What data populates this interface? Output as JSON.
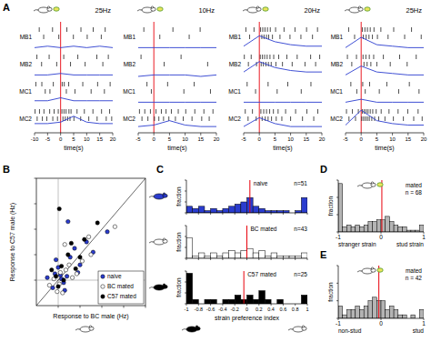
{
  "chart_data": [
    {
      "type": "raster",
      "panel_label": "A",
      "title": "25Hz",
      "xlabel": "time(s)",
      "xlim": [
        -10,
        20
      ],
      "xticks": [
        -10,
        -5,
        0,
        5,
        10,
        15,
        20
      ],
      "stimulus_onset": 0,
      "rate_x": [
        -10,
        -5,
        0,
        5,
        10,
        15,
        20
      ],
      "rate_ylim": [
        0,
        16
      ],
      "color": "#2a3ccf",
      "rows": [
        {
          "name": "MB1",
          "trials": [
            [
              -8.2,
              -3.1,
              2.4,
              7.8,
              12.5,
              17.1
            ],
            [
              -6.5,
              -0.7,
              4.9,
              10.2,
              15.6
            ]
          ],
          "rate": [
            1,
            2,
            1,
            2,
            1,
            2,
            1
          ]
        },
        {
          "name": "MB2",
          "trials": [
            [
              -9.1,
              -4.4,
              1.2,
              6.6,
              13.9,
              18.3
            ],
            [
              -7.3,
              -1.5,
              3.8,
              9.4,
              16.2
            ]
          ],
          "rate": [
            1,
            1,
            2,
            1,
            1,
            1,
            1
          ]
        },
        {
          "name": "MC1",
          "trials": [
            [
              -9.5,
              -7.2,
              -2.8,
              0.6,
              1.4,
              3.1,
              8.5,
              14.2,
              19.0
            ],
            [
              -5.9,
              -4.1,
              2.2,
              5.5,
              11.7,
              16.8
            ]
          ],
          "rate": [
            2,
            2,
            4,
            2,
            2,
            2,
            2
          ]
        },
        {
          "name": "MC2",
          "trials": [
            [
              -9.8,
              -8.1,
              -6.4,
              -4.2,
              -2.5,
              -0.9,
              0.5,
              1.3,
              2.1,
              3.2,
              4.0,
              6.3,
              9.1,
              12.4,
              15.7,
              18.8
            ],
            [
              -9.0,
              -7.0,
              -5.3,
              -3.0,
              -1.2,
              0.9,
              1.8,
              2.7,
              3.6,
              5.1,
              7.7,
              10.8,
              14.0,
              17.5,
              19.6
            ]
          ],
          "rate": [
            5,
            5,
            6,
            10,
            6,
            5,
            5
          ]
        }
      ]
    },
    {
      "type": "raster",
      "title": "10Hz",
      "xlabel": "time(s)",
      "xlim": [
        -5,
        20
      ],
      "xticks": [
        -5,
        0,
        5,
        10,
        15,
        20
      ],
      "stimulus_onset": 0,
      "rate_x": [
        -5,
        0,
        5,
        10,
        15,
        20
      ],
      "rate_ylim": [
        0,
        16
      ],
      "color": "#2a3ccf",
      "rows": [
        {
          "name": "MB1",
          "trials": [
            [
              -3.2,
              6.1,
              14.8
            ],
            [
              1.9,
              11.3
            ]
          ],
          "rate": [
            1,
            1,
            1,
            1,
            1,
            1
          ]
        },
        {
          "name": "MB2",
          "trials": [
            [
              -4.1,
              8.7
            ],
            [
              3.3,
              17.2
            ]
          ],
          "rate": [
            0,
            1,
            1,
            1,
            0,
            1
          ]
        },
        {
          "name": "MC1",
          "trials": [
            [
              -2.2,
              4.4,
              12.9
            ],
            [
              -0.8,
              9.6,
              18.1
            ]
          ],
          "rate": [
            1,
            1,
            1,
            1,
            1,
            1
          ]
        },
        {
          "name": "MC2",
          "trials": [
            [
              -4.6,
              -2.9,
              -1.1,
              0.7,
              2.4,
              3.9,
              5.6,
              7.8,
              10.2,
              13.1,
              16.0,
              18.9
            ],
            [
              -3.8,
              -1.9,
              0.2,
              1.6,
              3.1,
              4.8,
              6.9,
              9.4,
              12.2,
              15.3,
              17.7
            ]
          ],
          "rate": [
            3,
            4,
            7,
            4,
            3,
            3
          ]
        }
      ]
    },
    {
      "type": "raster",
      "title": "20Hz",
      "xlabel": "time(s)",
      "xlim": [
        -5,
        20
      ],
      "xticks": [
        -5,
        0,
        5,
        10,
        15,
        20
      ],
      "stimulus_onset": 0,
      "rate_x": [
        -5,
        0,
        5,
        10,
        15,
        20
      ],
      "rate_ylim": [
        0,
        16
      ],
      "color": "#2a3ccf",
      "rows": [
        {
          "name": "MB1",
          "trials": [
            [
              -4.3,
              -1.7,
              0.4,
              1.1,
              1.8,
              2.6,
              3.5,
              5.2,
              7.9,
              11.4,
              15.1,
              18.6
            ],
            [
              -3.1,
              0.8,
              1.5,
              2.3,
              3.0,
              4.2,
              6.6,
              9.8,
              13.3,
              17.0
            ]
          ],
          "rate": [
            2,
            9,
            5,
            3,
            2,
            2
          ]
        },
        {
          "name": "MB2",
          "trials": [
            [
              -4.8,
              -2.6,
              0.3,
              1.0,
              1.7,
              2.5,
              3.4,
              4.6,
              6.2,
              8.8,
              12.1,
              16.4,
              19.3
            ],
            [
              -3.5,
              -0.9,
              0.6,
              1.3,
              2.1,
              2.9,
              3.8,
              5.3,
              7.4,
              10.5,
              14.6,
              18.0
            ]
          ],
          "rate": [
            3,
            10,
            6,
            4,
            3,
            3
          ]
        },
        {
          "name": "MC1",
          "trials": [
            [
              -3.9,
              2.8,
              9.1,
              16.5
            ],
            [
              -1.2,
              5.7,
              13.4
            ]
          ],
          "rate": [
            1,
            1,
            1,
            1,
            1,
            1
          ]
        },
        {
          "name": "MC2",
          "trials": [
            [
              -4.5,
              -2.2,
              0.5,
              1.4,
              2.3,
              3.3,
              4.5,
              6.0,
              8.4,
              11.6,
              15.2,
              18.7
            ],
            [
              -3.6,
              -1.0,
              0.9,
              1.9,
              2.8,
              3.9,
              5.4,
              7.2,
              10.0,
              13.8,
              17.4
            ]
          ],
          "rate": [
            3,
            9,
            5,
            3,
            3,
            3
          ]
        }
      ]
    },
    {
      "type": "raster",
      "title": "25Hz",
      "xlabel": "time(s)",
      "xlim": [
        -5,
        20
      ],
      "xticks": [
        -5,
        0,
        5,
        10,
        15,
        20
      ],
      "stimulus_onset": 0,
      "rate_x": [
        -5,
        0,
        5,
        10,
        15,
        20
      ],
      "rate_ylim": [
        0,
        16
      ],
      "color": "#2a3ccf",
      "rows": [
        {
          "name": "MB1",
          "trials": [
            [
              -4.0,
              0.4,
              1.2,
              2.0,
              2.9,
              4.1,
              6.3,
              10.4,
              16.1
            ],
            [
              -2.1,
              0.7,
              1.6,
              2.5,
              3.6,
              5.2,
              8.6,
              13.9,
              19.2
            ]
          ],
          "rate": [
            1,
            8,
            3,
            2,
            1,
            1
          ]
        },
        {
          "name": "MB2",
          "trials": [
            [
              -4.4,
              -1.5,
              0.6,
              1.5,
              2.6,
              4.0,
              7.1,
              12.3,
              17.6
            ],
            [
              -3.0,
              0.9,
              1.9,
              3.1,
              5.0,
              9.3,
              14.7
            ]
          ],
          "rate": [
            1,
            7,
            3,
            2,
            1,
            1
          ]
        },
        {
          "name": "MC1",
          "trials": [
            [
              -3.3,
              0.5,
              2.7,
              8.2,
              15.4
            ],
            [
              -1.4,
              1.3,
              5.8,
              12.0,
              18.5
            ]
          ],
          "rate": [
            1,
            3,
            1,
            1,
            1,
            1
          ]
        },
        {
          "name": "MC2",
          "trials": [
            [
              -4.7,
              -2.8,
              -0.9,
              0.4,
              1.0,
              1.6,
              2.2,
              2.9,
              3.7,
              4.8,
              6.4,
              8.9,
              11.8,
              14.9,
              18.2
            ],
            [
              -3.9,
              -1.8,
              0.2,
              0.8,
              1.4,
              2.0,
              2.6,
              3.4,
              4.3,
              5.6,
              7.6,
              10.3,
              13.5,
              16.8,
              19.5
            ]
          ],
          "rate": [
            4,
            14,
            7,
            5,
            4,
            4
          ]
        }
      ]
    },
    {
      "type": "scatter",
      "panel_label": "B",
      "xlabel": "Response to BC male (Hz)",
      "ylabel": "Response to C57 male (Hz)",
      "xlim": [
        -2,
        8
      ],
      "ylim": [
        -2,
        8
      ],
      "xticks": [
        0,
        2,
        4,
        6,
        8
      ],
      "yticks": [
        0,
        2,
        4,
        6,
        8
      ],
      "tick_labels": false,
      "legend": "lower right",
      "series": [
        {
          "name": "naive",
          "color": "#2a3ccf",
          "marker": "circle",
          "x": [
            0.2,
            0.5,
            -0.3,
            1.1,
            0.8,
            2.0,
            -0.5,
            0.0,
            1.5,
            0.3,
            3.2,
            -1.0,
            0.6,
            2.6,
            1.8,
            -0.2,
            4.5,
            0.9
          ],
          "values": [
            0.4,
            -0.2,
            0.5,
            1.8,
            0.3,
            1.2,
            -0.6,
            1.0,
            2.5,
            0.1,
            2.2,
            0.2,
            -0.8,
            3.0,
            0.6,
            1.6,
            3.8,
            4.6
          ]
        },
        {
          "name": "BC mated",
          "color": "#ffffff",
          "marker": "circle",
          "x": [
            0.1,
            0.7,
            1.3,
            -0.4,
            2.2,
            0.4,
            3.0,
            -0.8,
            1.0,
            5.2,
            0.2,
            1.7,
            2.8,
            -0.1,
            0.6
          ],
          "values": [
            -0.3,
            0.8,
            0.2,
            0.1,
            1.5,
            -1.0,
            2.0,
            -0.4,
            1.2,
            4.2,
            0.6,
            0.5,
            3.4,
            -0.9,
            2.8
          ]
        },
        {
          "name": "C57 mated",
          "color": "#000000",
          "marker": "circle",
          "x": [
            0.3,
            -0.2,
            0.9,
            1.6,
            0.0,
            2.4,
            -0.6,
            1.2,
            3.6,
            0.5,
            0.1,
            2.0
          ],
          "values": [
            1.1,
            0.3,
            2.0,
            0.9,
            -0.5,
            3.2,
            0.8,
            2.9,
            4.5,
            0.0,
            5.6,
            1.8
          ]
        }
      ]
    },
    {
      "type": "histogram",
      "panel_label": "C",
      "name": "naive",
      "annotation": "n=51",
      "ylabel": "fraction",
      "color": "#2a3ccf",
      "xlim": [
        -1,
        1
      ],
      "ylim": [
        0,
        0.3
      ],
      "xticks": [
        -1,
        -0.8,
        -0.6,
        -0.4,
        -0.2,
        0,
        0.2,
        0.4,
        0.6,
        0.8,
        1
      ],
      "yticks": [
        0,
        0.1,
        0.2,
        0.3
      ],
      "tick_labels": false,
      "median": 0.05,
      "bins": [
        -1,
        -0.9,
        -0.8,
        -0.7,
        -0.6,
        -0.5,
        -0.4,
        -0.3,
        -0.2,
        -0.1,
        0,
        0.1,
        0.2,
        0.3,
        0.4,
        0.5,
        0.6,
        0.7,
        0.8,
        0.9,
        1
      ],
      "counts": [
        0.06,
        0.04,
        0.06,
        0.02,
        0.04,
        0.02,
        0.04,
        0.06,
        0.08,
        0.1,
        0.14,
        0.06,
        0.04,
        0.02,
        0.02,
        0.02,
        0.02,
        0.0,
        0.02,
        0.14
      ]
    },
    {
      "type": "histogram",
      "name": "BC mated",
      "annotation": "n=43",
      "ylabel": "fraction",
      "color": "#ffffff",
      "xlim": [
        -1,
        1
      ],
      "ylim": [
        0,
        0.3
      ],
      "xticks": [
        -1,
        -0.8,
        -0.6,
        -0.4,
        -0.2,
        0,
        0.2,
        0.4,
        0.6,
        0.8,
        1
      ],
      "yticks": [
        0,
        0.1,
        0.2,
        0.3
      ],
      "tick_labels": false,
      "median": 0.0,
      "bins": [
        -1,
        -0.9,
        -0.8,
        -0.7,
        -0.6,
        -0.5,
        -0.4,
        -0.3,
        -0.2,
        -0.1,
        0,
        0.1,
        0.2,
        0.3,
        0.4,
        0.5,
        0.6,
        0.7,
        0.8,
        0.9,
        1
      ],
      "counts": [
        0.19,
        0.02,
        0.05,
        0.02,
        0.05,
        0.02,
        0.05,
        0.07,
        0.05,
        0.07,
        0.09,
        0.05,
        0.07,
        0.02,
        0.05,
        0.02,
        0.02,
        0.02,
        0.02,
        0.05
      ]
    },
    {
      "type": "histogram",
      "name": "C57 mated",
      "annotation": "n=25",
      "ylabel": "fraction",
      "xlabel": "strain preference index",
      "color": "#000000",
      "xlim": [
        -1,
        1
      ],
      "ylim": [
        0,
        0.3
      ],
      "xticks": [
        -1,
        -0.8,
        -0.6,
        -0.4,
        -0.2,
        0,
        0.2,
        0.4,
        0.6,
        0.8,
        1
      ],
      "yticks": [
        0,
        0.1,
        0.2,
        0.3
      ],
      "tick_labels": "x",
      "median": -0.05,
      "bins": [
        -1,
        -0.9,
        -0.8,
        -0.7,
        -0.6,
        -0.5,
        -0.4,
        -0.3,
        -0.2,
        -0.1,
        0,
        0.1,
        0.2,
        0.3,
        0.4,
        0.5,
        0.6,
        0.7,
        0.8,
        0.9,
        1
      ],
      "counts": [
        0.28,
        0.04,
        0,
        0.04,
        0.04,
        0,
        0.04,
        0.04,
        0.08,
        0.04,
        0.08,
        0.04,
        0.12,
        0.04,
        0,
        0.04,
        0,
        0,
        0,
        0.08
      ]
    },
    {
      "type": "histogram",
      "panel_label": "D",
      "name": "mated",
      "annotation": "n = 68",
      "ylabel": "fraction",
      "end_labels": [
        "stranger strain",
        "stud strain"
      ],
      "color": "#b4b4b4",
      "xlim": [
        -1,
        1
      ],
      "ylim": [
        0,
        0.3
      ],
      "xticks": [
        -1,
        0,
        1
      ],
      "yticks": [
        0,
        0.1,
        0.2,
        0.3
      ],
      "tick_labels": "x",
      "median": 0.02,
      "bins": [
        -1,
        -0.9,
        -0.8,
        -0.7,
        -0.6,
        -0.5,
        -0.4,
        -0.3,
        -0.2,
        -0.1,
        0,
        0.1,
        0.2,
        0.3,
        0.4,
        0.5,
        0.6,
        0.7,
        0.8,
        0.9,
        1
      ],
      "counts": [
        0.28,
        0.03,
        0.04,
        0.03,
        0.04,
        0.03,
        0.04,
        0.06,
        0.06,
        0.07,
        0.07,
        0.09,
        0.06,
        0.04,
        0.03,
        0.03,
        0.01,
        0.01,
        0.01,
        0.04
      ]
    },
    {
      "type": "histogram",
      "panel_label": "E",
      "name": "mated",
      "annotation": "n = 42",
      "ylabel": "fraction",
      "end_labels": [
        "non-stud",
        "stud"
      ],
      "color": "#b4b4b4",
      "xlim": [
        -1,
        1
      ],
      "ylim": [
        0,
        0.3
      ],
      "xticks": [
        -1,
        0,
        1
      ],
      "yticks": [
        0,
        0.1,
        0.2,
        0.3
      ],
      "tick_labels": "x",
      "median": -0.05,
      "bins": [
        -1,
        -0.9,
        -0.8,
        -0.7,
        -0.6,
        -0.5,
        -0.4,
        -0.3,
        -0.2,
        -0.1,
        0,
        0.1,
        0.2,
        0.3,
        0.4,
        0.5,
        0.6,
        0.7,
        0.8,
        0.9,
        1
      ],
      "counts": [
        0.07,
        0.02,
        0.05,
        0.05,
        0.07,
        0.05,
        0.07,
        0.1,
        0.12,
        0.1,
        0.1,
        0.05,
        0.07,
        0.05,
        0.02,
        0.02,
        0,
        0.02,
        0,
        0.05
      ]
    }
  ]
}
